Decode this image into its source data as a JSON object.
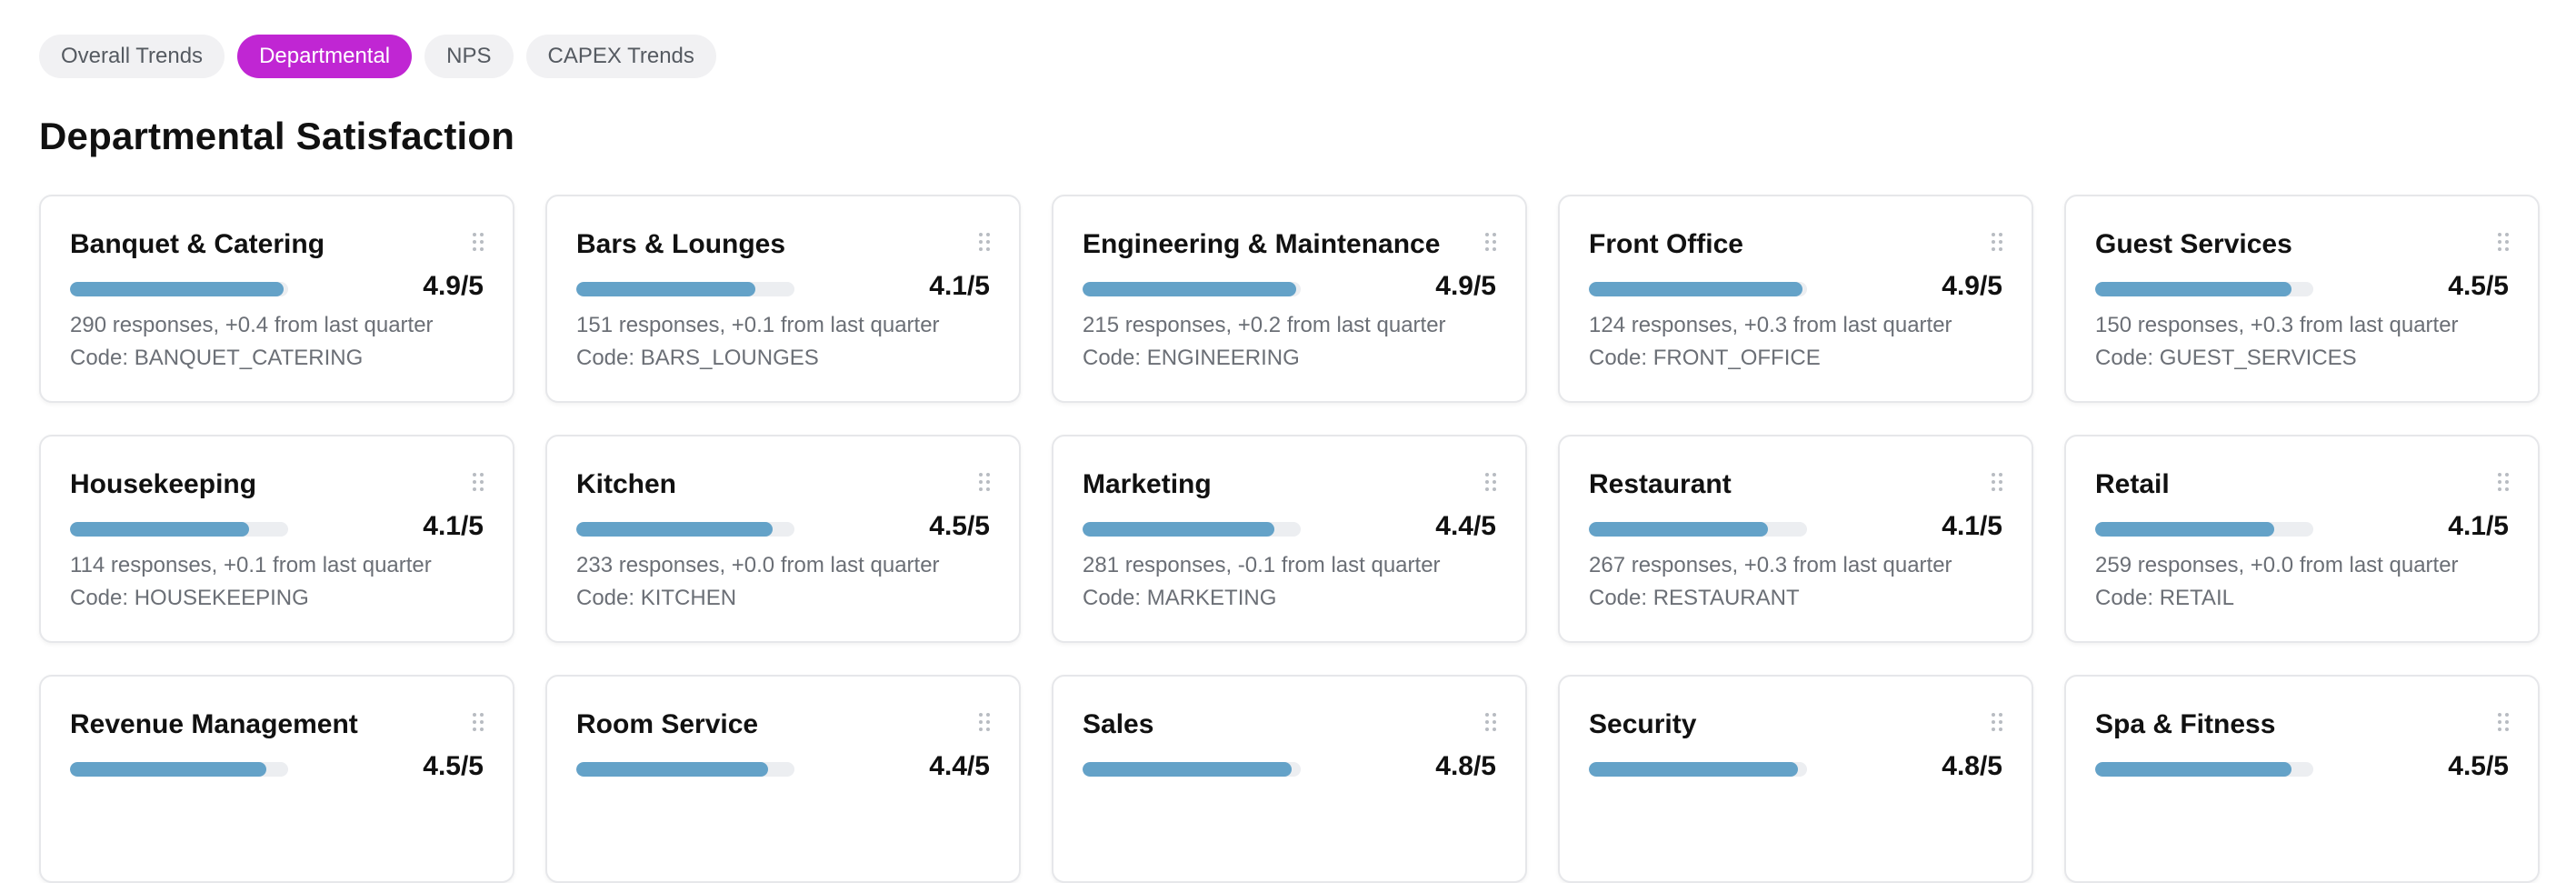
{
  "tabs": [
    {
      "label": "Overall Trends",
      "active": false
    },
    {
      "label": "Departmental",
      "active": true
    },
    {
      "label": "NPS",
      "active": false
    },
    {
      "label": "CAPEX Trends",
      "active": false
    }
  ],
  "page_title": "Departmental Satisfaction",
  "colors": {
    "accent": "#c026d3",
    "bar": "#64a2c8",
    "bar_track": "#eceef1"
  },
  "departments": [
    {
      "name": "Banquet & Catering",
      "score": "4.9/5",
      "score_value": 4.9,
      "responses": "290 responses, +0.4 from last quarter",
      "code": "Code: BANQUET_CATERING"
    },
    {
      "name": "Bars & Lounges",
      "score": "4.1/5",
      "score_value": 4.1,
      "responses": "151 responses, +0.1 from last quarter",
      "code": "Code: BARS_LOUNGES"
    },
    {
      "name": "Engineering & Maintenance",
      "score": "4.9/5",
      "score_value": 4.9,
      "responses": "215 responses, +0.2 from last quarter",
      "code": "Code: ENGINEERING"
    },
    {
      "name": "Front Office",
      "score": "4.9/5",
      "score_value": 4.9,
      "responses": "124 responses, +0.3 from last quarter",
      "code": "Code: FRONT_OFFICE"
    },
    {
      "name": "Guest Services",
      "score": "4.5/5",
      "score_value": 4.5,
      "responses": "150 responses, +0.3 from last quarter",
      "code": "Code: GUEST_SERVICES"
    },
    {
      "name": "Housekeeping",
      "score": "4.1/5",
      "score_value": 4.1,
      "responses": "114 responses, +0.1 from last quarter",
      "code": "Code: HOUSEKEEPING"
    },
    {
      "name": "Kitchen",
      "score": "4.5/5",
      "score_value": 4.5,
      "responses": "233 responses, +0.0 from last quarter",
      "code": "Code: KITCHEN"
    },
    {
      "name": "Marketing",
      "score": "4.4/5",
      "score_value": 4.4,
      "responses": "281 responses, -0.1 from last quarter",
      "code": "Code: MARKETING"
    },
    {
      "name": "Restaurant",
      "score": "4.1/5",
      "score_value": 4.1,
      "responses": "267 responses, +0.3 from last quarter",
      "code": "Code: RESTAURANT"
    },
    {
      "name": "Retail",
      "score": "4.1/5",
      "score_value": 4.1,
      "responses": "259 responses, +0.0 from last quarter",
      "code": "Code: RETAIL"
    },
    {
      "name": "Revenue Management",
      "score": "4.5/5",
      "score_value": 4.5,
      "responses": "",
      "code": ""
    },
    {
      "name": "Room Service",
      "score": "4.4/5",
      "score_value": 4.4,
      "responses": "",
      "code": ""
    },
    {
      "name": "Sales",
      "score": "4.8/5",
      "score_value": 4.8,
      "responses": "",
      "code": ""
    },
    {
      "name": "Security",
      "score": "4.8/5",
      "score_value": 4.8,
      "responses": "",
      "code": ""
    },
    {
      "name": "Spa & Fitness",
      "score": "4.5/5",
      "score_value": 4.5,
      "responses": "",
      "code": ""
    }
  ]
}
